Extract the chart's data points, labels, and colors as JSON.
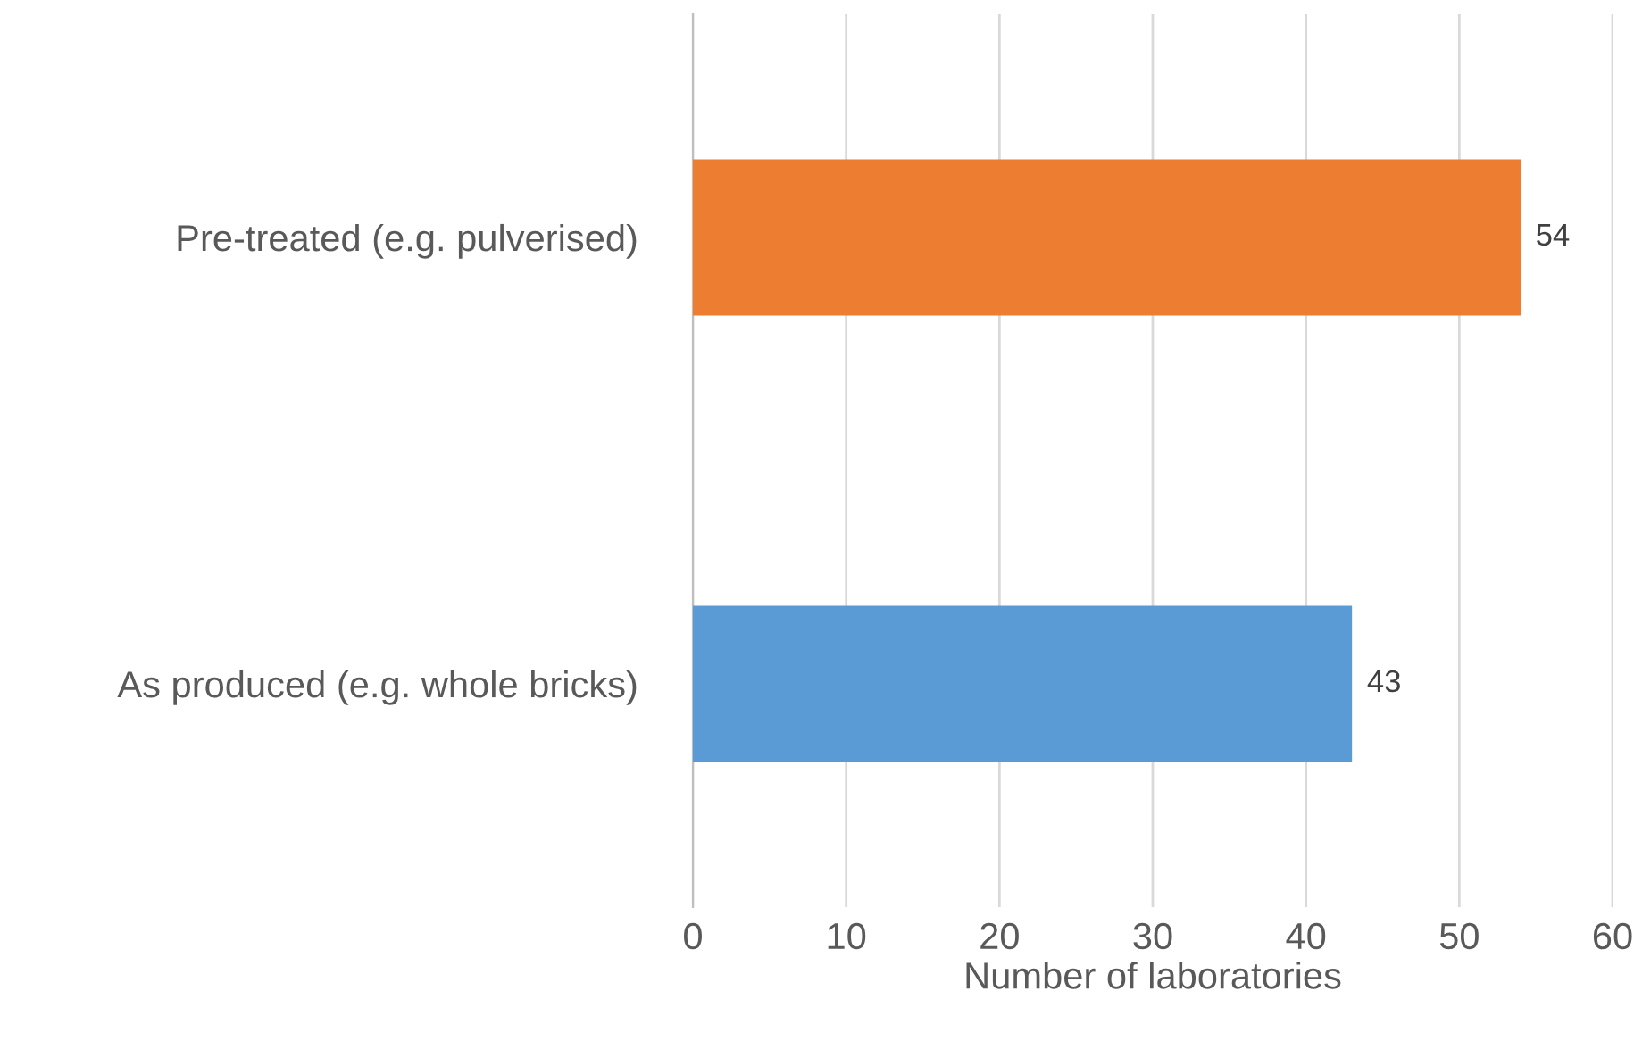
{
  "chart_data": {
    "type": "bar",
    "orientation": "horizontal",
    "xlabel": "Number of laboratories",
    "categories": [
      "Pre-treated (e.g. pulverised)",
      "As produced (e.g. whole bricks)"
    ],
    "values": [
      54,
      43
    ],
    "colors": [
      "#ed7d31",
      "#5b9bd5"
    ],
    "xlim": [
      0,
      60
    ],
    "xticks": [
      0,
      10,
      20,
      30,
      40,
      50,
      60
    ],
    "grid": "x",
    "data_labels": true,
    "legend": false
  }
}
